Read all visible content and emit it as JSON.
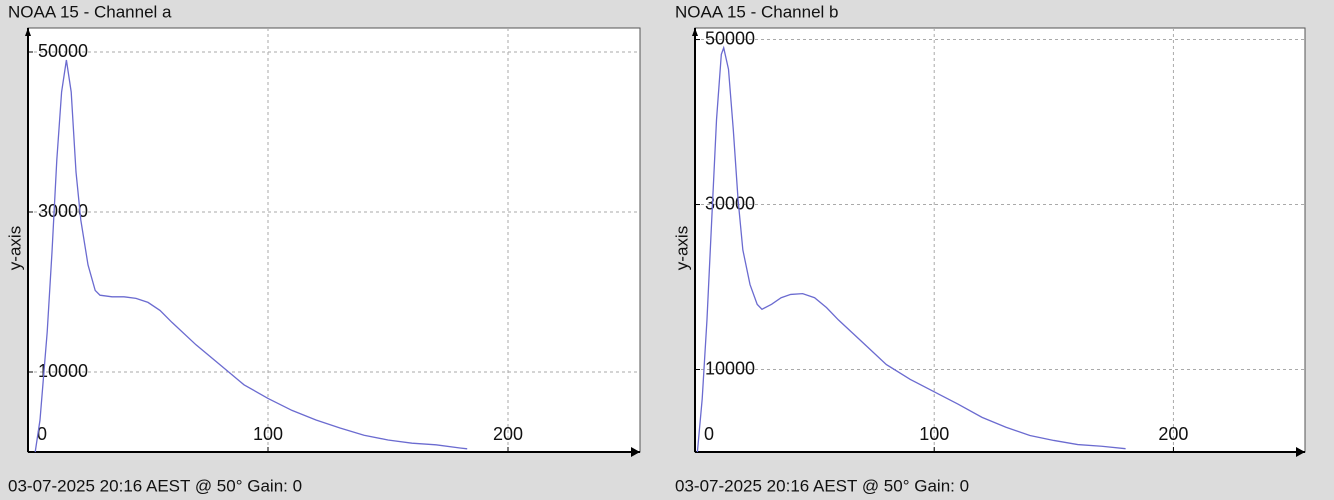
{
  "chart_data": [
    {
      "type": "line",
      "title": "NOAA 15 - Channel a",
      "ylabel": "y-axis",
      "caption": "03-07-2025 20:16 AEST @ 50° Gain: 0",
      "color": "#6b6bd0",
      "grid": true,
      "xlim": [
        0,
        255
      ],
      "ylim": [
        0,
        53000
      ],
      "xticks": [
        0,
        100,
        200
      ],
      "yticks": [
        10000,
        30000,
        50000
      ],
      "x": [
        3,
        5,
        8,
        10,
        12,
        14,
        16,
        18,
        20,
        22,
        25,
        28,
        30,
        35,
        40,
        45,
        50,
        55,
        60,
        70,
        80,
        90,
        100,
        110,
        120,
        130,
        140,
        150,
        160,
        170,
        180,
        183
      ],
      "values": [
        0,
        4000,
        15000,
        25000,
        36500,
        45000,
        49000,
        45000,
        35000,
        29000,
        23400,
        20200,
        19600,
        19400,
        19400,
        19200,
        18700,
        17700,
        16200,
        13400,
        10900,
        8400,
        6700,
        5200,
        4000,
        3000,
        2100,
        1500,
        1100,
        900,
        500,
        400
      ]
    },
    {
      "type": "line",
      "title": "NOAA 15 - Channel b",
      "ylabel": "y-axis",
      "caption": "03-07-2025 20:16 AEST @ 50° Gain: 0",
      "color": "#6b6bd0",
      "grid": true,
      "xlim": [
        0,
        255
      ],
      "ylim": [
        0,
        51400
      ],
      "xticks": [
        0,
        100,
        200
      ],
      "yticks": [
        10000,
        30000,
        50000
      ],
      "x": [
        1,
        3,
        5,
        7,
        9,
        11,
        12,
        14,
        16,
        18,
        20,
        23,
        26,
        28,
        32,
        36,
        40,
        45,
        50,
        55,
        60,
        70,
        80,
        90,
        100,
        110,
        120,
        130,
        140,
        150,
        160,
        170,
        180
      ],
      "values": [
        0,
        6400,
        16000,
        28200,
        40300,
        48200,
        49000,
        46400,
        39100,
        30600,
        24500,
        20300,
        17900,
        17300,
        17900,
        18700,
        19100,
        19200,
        18700,
        17500,
        16000,
        13300,
        10600,
        8800,
        7300,
        5800,
        4200,
        3000,
        2000,
        1400,
        900,
        700,
        400
      ]
    }
  ]
}
